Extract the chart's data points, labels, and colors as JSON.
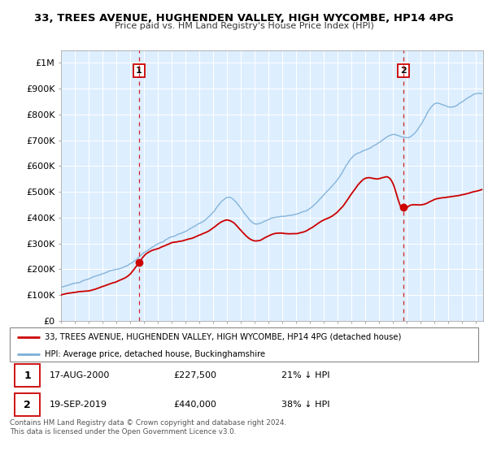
{
  "title": "33, TREES AVENUE, HUGHENDEN VALLEY, HIGH WYCOMBE, HP14 4PG",
  "subtitle": "Price paid vs. HM Land Registry's House Price Index (HPI)",
  "ylim": [
    0,
    1050000
  ],
  "yticks": [
    0,
    100000,
    200000,
    300000,
    400000,
    500000,
    600000,
    700000,
    800000,
    900000,
    1000000
  ],
  "ytick_labels": [
    "£0",
    "£100K",
    "£200K",
    "£300K",
    "£400K",
    "£500K",
    "£600K",
    "£700K",
    "£800K",
    "£900K",
    "£1M"
  ],
  "hpi_color": "#7aaed6",
  "price_color": "#cc0000",
  "dashed_color": "#cc0000",
  "bg_color": "#ddeeff",
  "legend_house": "33, TREES AVENUE, HUGHENDEN VALLEY, HIGH WYCOMBE, HP14 4PG (detached house)",
  "legend_hpi": "HPI: Average price, detached house, Buckinghamshire",
  "sale1_date": "17-AUG-2000",
  "sale1_price": "£227,500",
  "sale1_hpi": "21% ↓ HPI",
  "sale2_date": "19-SEP-2019",
  "sale2_price": "£440,000",
  "sale2_hpi": "38% ↓ HPI",
  "footnote": "Contains HM Land Registry data © Crown copyright and database right 2024.\nThis data is licensed under the Open Government Licence v3.0.",
  "sale1_year": 2000.62,
  "sale1_value": 227500,
  "sale2_year": 2019.72,
  "sale2_value": 440000,
  "xmin": 1995,
  "xmax": 2025.5
}
